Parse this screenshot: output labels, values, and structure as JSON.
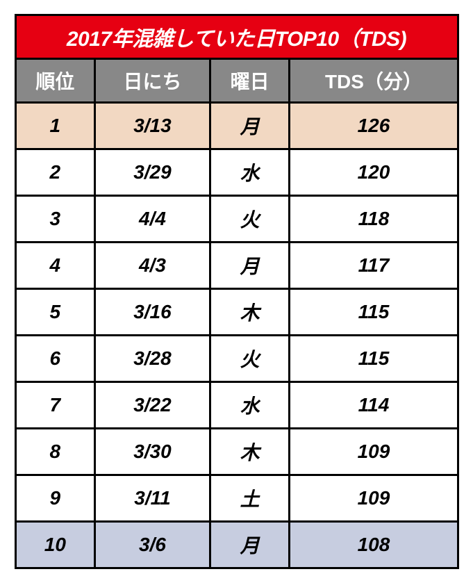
{
  "title": {
    "text": "2017年混雑していた日TOP10（TDS)",
    "bg": "#e60012",
    "fg": "#ffffff",
    "fontsize": 30
  },
  "header": {
    "bg": "#888888",
    "fg": "#ffffff",
    "fontsize": 28,
    "cols": [
      "順位",
      "日にち",
      "曜日",
      "TDS（分）"
    ]
  },
  "col_widths": [
    "18%",
    "26%",
    "18%",
    "38%"
  ],
  "row_defaults": {
    "bg": "#ffffff",
    "fg": "#000000",
    "fontsize": 28
  },
  "rows": [
    {
      "rank": "1",
      "date": "3/13",
      "dow": "月",
      "val": "126",
      "bg": "#f2d8c2"
    },
    {
      "rank": "2",
      "date": "3/29",
      "dow": "水",
      "val": "120"
    },
    {
      "rank": "3",
      "date": "4/4",
      "dow": "火",
      "val": "118"
    },
    {
      "rank": "4",
      "date": "4/3",
      "dow": "月",
      "val": "117"
    },
    {
      "rank": "5",
      "date": "3/16",
      "dow": "木",
      "val": "115"
    },
    {
      "rank": "6",
      "date": "3/28",
      "dow": "火",
      "val": "115"
    },
    {
      "rank": "7",
      "date": "3/22",
      "dow": "水",
      "val": "114"
    },
    {
      "rank": "8",
      "date": "3/30",
      "dow": "木",
      "val": "109"
    },
    {
      "rank": "9",
      "date": "3/11",
      "dow": "土",
      "val": "109"
    },
    {
      "rank": "10",
      "date": "3/6",
      "dow": "月",
      "val": "108",
      "bg": "#c7cde0"
    }
  ]
}
